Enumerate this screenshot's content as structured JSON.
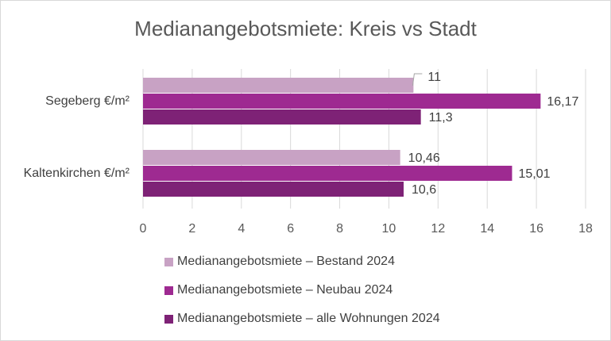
{
  "chart_data": {
    "type": "bar",
    "orientation": "horizontal",
    "title": "Medianangebotsmiete: Kreis vs Stadt",
    "categories": [
      "Segeberg €/m²",
      "Kaltenkirchen €/m²"
    ],
    "series": [
      {
        "name": "Medianangebotsmiete – Bestand 2024",
        "values": [
          11,
          10.46
        ],
        "labels": [
          "11",
          "10,46"
        ],
        "color": "#C8A2C4"
      },
      {
        "name": "Medianangebotsmiete – Neubau 2024",
        "values": [
          16.17,
          15.01
        ],
        "labels": [
          "16,17",
          "15,01"
        ],
        "color": "#9E2A91"
      },
      {
        "name": "Medianangebotsmiete – alle Wohnungen 2024",
        "values": [
          11.3,
          10.6
        ],
        "labels": [
          "11,3",
          "10,6"
        ],
        "color": "#7E2276"
      }
    ],
    "xlim": [
      0,
      18
    ],
    "xticks": [
      "0",
      "2",
      "4",
      "6",
      "8",
      "10",
      "12",
      "14",
      "16",
      "18"
    ],
    "grid": true,
    "legend": "bottom"
  }
}
